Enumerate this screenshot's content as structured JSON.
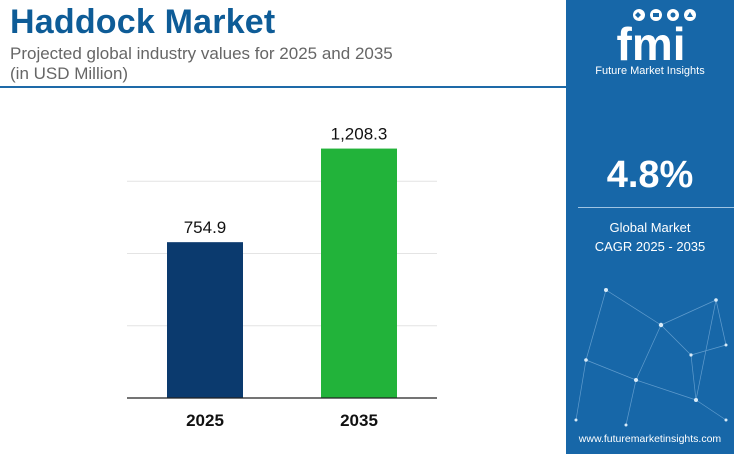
{
  "header": {
    "title": "Haddock Market",
    "subtitle_line1": "Projected global industry values for 2025 and 2035",
    "subtitle_line2": "(in USD Million)"
  },
  "sidebar": {
    "logo_text": "fmi",
    "brand_name": "Future Market Insights",
    "cagr_value": "4.8%",
    "cagr_label_line1": "Global Market",
    "cagr_label_line2": "CAGR 2025 - 2035",
    "website": "www.futuremarketinsights.com"
  },
  "colors": {
    "title": "#0e5c97",
    "panel": "#1767a8",
    "bar_2025": "#0b3a6e",
    "bar_2035": "#22b33a"
  },
  "chart_data": {
    "type": "bar",
    "title": "Haddock Market",
    "subtitle": "Projected global industry values for 2025 and 2035 (in USD Million)",
    "categories": [
      "2025",
      "2035"
    ],
    "values": [
      754.9,
      1208.3
    ],
    "value_labels": [
      "754.9",
      "1,208.3"
    ],
    "bar_colors": [
      "#0b3a6e",
      "#22b33a"
    ],
    "xlabel": "",
    "ylabel": "",
    "ylim": [
      0,
      1400
    ],
    "grid": true,
    "legend": "none"
  }
}
